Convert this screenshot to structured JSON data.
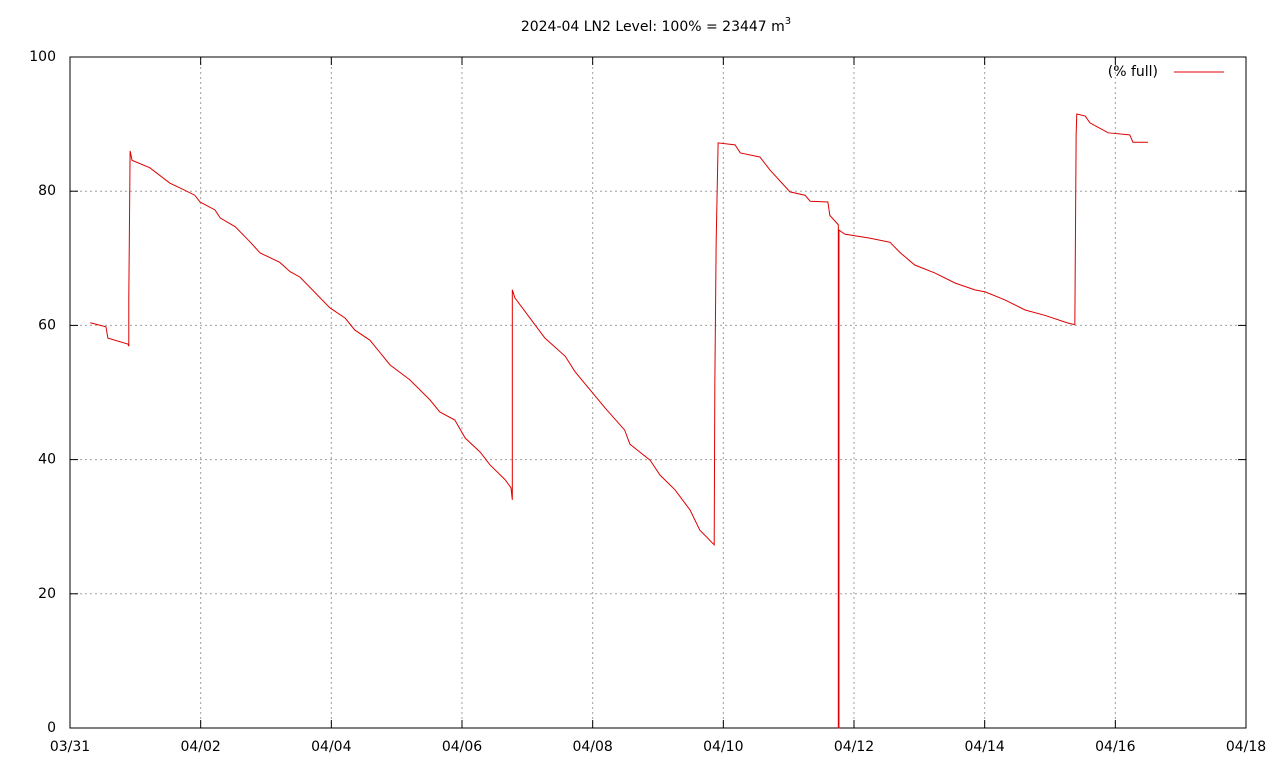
{
  "chart_data": {
    "type": "line",
    "title": "2024-04 LN2 Level: 100% = 23447 m",
    "title_superscript": "3",
    "xlim": [
      0,
      18
    ],
    "xticks": [
      {
        "value": 0,
        "label": "03/31"
      },
      {
        "value": 2,
        "label": "04/02"
      },
      {
        "value": 4,
        "label": "04/04"
      },
      {
        "value": 6,
        "label": "04/06"
      },
      {
        "value": 8,
        "label": "04/08"
      },
      {
        "value": 10,
        "label": "04/10"
      },
      {
        "value": 12,
        "label": "04/12"
      },
      {
        "value": 14,
        "label": "04/14"
      },
      {
        "value": 16,
        "label": "04/16"
      },
      {
        "value": 18,
        "label": "04/18"
      }
    ],
    "ylim": [
      0,
      100
    ],
    "yticks": [
      0,
      20,
      40,
      60,
      80,
      100
    ],
    "grid": true,
    "legend": "top-right",
    "series": [
      {
        "name": "(% full)",
        "color": "#dd0000",
        "x": [
          0.31,
          0.55,
          0.58,
          0.89,
          0.9,
          0.9,
          0.92,
          0.95,
          1.22,
          1.53,
          1.68,
          1.91,
          1.99,
          2.22,
          2.3,
          2.53,
          2.76,
          2.91,
          3.21,
          3.37,
          3.52,
          3.98,
          4.21,
          4.36,
          4.59,
          4.9,
          5.2,
          5.51,
          5.66,
          5.89,
          6.05,
          6.28,
          6.43,
          6.66,
          6.75,
          6.77,
          6.77,
          6.81,
          7.04,
          7.27,
          7.58,
          7.73,
          7.96,
          8.19,
          8.49,
          8.57,
          8.88,
          9.03,
          9.26,
          9.49,
          9.64,
          9.86,
          9.87,
          9.89,
          9.92,
          10.18,
          10.26,
          10.56,
          10.71,
          11.02,
          11.25,
          11.33,
          11.6,
          11.63,
          11.76,
          11.76,
          11.77,
          11.77,
          11.86,
          12.24,
          12.55,
          12.7,
          12.93,
          13.24,
          13.55,
          13.85,
          14.01,
          14.31,
          14.62,
          14.92,
          15.26,
          15.38,
          15.4,
          15.41,
          15.54,
          15.61,
          15.89,
          16.22,
          16.27,
          16.5
        ],
        "values": [
          60.4,
          59.8,
          58.1,
          57.2,
          56.9,
          64.1,
          86.0,
          84.6,
          83.5,
          81.2,
          80.5,
          79.4,
          78.4,
          77.2,
          76.0,
          74.7,
          72.4,
          70.8,
          69.4,
          68.0,
          67.2,
          62.6,
          61.1,
          59.3,
          57.8,
          54.1,
          51.9,
          48.9,
          47.1,
          45.9,
          43.2,
          41.1,
          39.2,
          37.0,
          35.8,
          34.0,
          65.3,
          64.1,
          61.1,
          58.1,
          55.4,
          53.1,
          50.4,
          47.7,
          44.4,
          42.3,
          39.9,
          37.7,
          35.5,
          32.5,
          29.5,
          27.3,
          51.4,
          72.3,
          87.2,
          86.9,
          85.7,
          85.1,
          83.2,
          79.9,
          79.4,
          78.5,
          78.4,
          76.4,
          75.0,
          0,
          0,
          74.2,
          73.6,
          73.0,
          72.4,
          70.9,
          69.0,
          67.8,
          66.3,
          65.3,
          65.0,
          63.8,
          62.3,
          61.5,
          60.4,
          60.1,
          88.4,
          91.5,
          91.2,
          90.2,
          88.7,
          88.4,
          87.3,
          87.3
        ]
      }
    ]
  }
}
